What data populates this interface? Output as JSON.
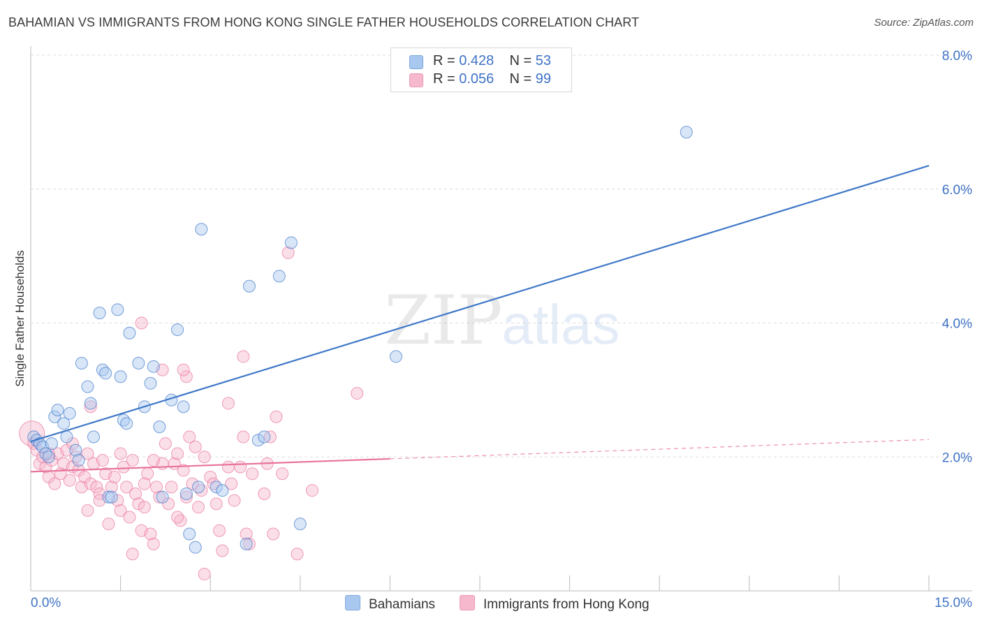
{
  "title": "BAHAMIAN VS IMMIGRANTS FROM HONG KONG SINGLE FATHER HOUSEHOLDS CORRELATION CHART",
  "source": "Source: ZipAtlas.com",
  "watermark": {
    "zip": "ZIP",
    "atlas": "atlas"
  },
  "legend_top": [
    {
      "r_label": "R = ",
      "r_value": "0.428",
      "n_label": "N = ",
      "n_value": "53",
      "color": "#a8c8f0"
    },
    {
      "r_label": "R = ",
      "r_value": "0.056",
      "n_label": "N = ",
      "n_value": "99",
      "color": "#f6b8cc"
    }
  ],
  "legend_bottom": [
    {
      "label": "Bahamians",
      "color": "#a8c8f0"
    },
    {
      "label": "Immigrants from Hong Kong",
      "color": "#f6b8cc"
    }
  ],
  "chart_data": {
    "type": "scatter",
    "ylabel": "Single Father Households",
    "xlabel": "",
    "xlim": [
      0,
      15
    ],
    "ylim": [
      0,
      8
    ],
    "x_ticks_labeled": [
      "0.0%",
      "15.0%"
    ],
    "y_ticks": [
      {
        "value": 2,
        "label": "2.0%"
      },
      {
        "value": 4,
        "label": "4.0%"
      },
      {
        "value": 6,
        "label": "6.0%"
      },
      {
        "value": 8,
        "label": "8.0%"
      }
    ],
    "grid": "horizontal-dashed",
    "legend_position": "top-center",
    "series": [
      {
        "name": "Bahamians",
        "color": "#3f78c8",
        "marker_fill": "#a8c8f0",
        "trend": {
          "x0": 0,
          "y0": 2.23,
          "x1": 15,
          "y1": 6.35,
          "dashed_from": null
        },
        "points": [
          [
            0.05,
            2.3
          ],
          [
            0.1,
            2.25
          ],
          [
            0.15,
            2.2
          ],
          [
            0.2,
            2.15
          ],
          [
            0.25,
            2.05
          ],
          [
            0.3,
            2.0
          ],
          [
            0.35,
            2.2
          ],
          [
            0.4,
            2.6
          ],
          [
            0.45,
            2.7
          ],
          [
            0.55,
            2.5
          ],
          [
            0.6,
            2.3
          ],
          [
            0.65,
            2.65
          ],
          [
            0.75,
            2.1
          ],
          [
            0.8,
            1.95
          ],
          [
            0.85,
            3.4
          ],
          [
            0.95,
            3.05
          ],
          [
            1.0,
            2.8
          ],
          [
            1.05,
            2.3
          ],
          [
            1.15,
            4.15
          ],
          [
            1.2,
            3.3
          ],
          [
            1.25,
            3.25
          ],
          [
            1.3,
            1.4
          ],
          [
            1.35,
            1.4
          ],
          [
            1.45,
            4.2
          ],
          [
            1.5,
            3.2
          ],
          [
            1.55,
            2.55
          ],
          [
            1.65,
            3.85
          ],
          [
            1.8,
            3.4
          ],
          [
            1.9,
            2.75
          ],
          [
            2.0,
            3.1
          ],
          [
            2.05,
            3.35
          ],
          [
            2.15,
            2.45
          ],
          [
            2.2,
            1.4
          ],
          [
            2.35,
            2.85
          ],
          [
            2.45,
            3.9
          ],
          [
            2.55,
            2.75
          ],
          [
            2.65,
            0.85
          ],
          [
            2.75,
            0.65
          ],
          [
            2.6,
            1.45
          ],
          [
            2.8,
            1.55
          ],
          [
            2.85,
            5.4
          ],
          [
            3.1,
            1.55
          ],
          [
            3.2,
            1.5
          ],
          [
            3.6,
            0.7
          ],
          [
            3.65,
            4.55
          ],
          [
            3.8,
            2.25
          ],
          [
            3.9,
            2.3
          ],
          [
            4.15,
            4.7
          ],
          [
            4.35,
            5.2
          ],
          [
            4.5,
            1.0
          ],
          [
            6.1,
            3.5
          ],
          [
            10.95,
            6.85
          ],
          [
            1.6,
            2.5
          ]
        ]
      },
      {
        "name": "Immigrants from Hong Kong",
        "color": "#e8739c",
        "marker_fill": "#f6b8cc",
        "trend": {
          "x0": 0,
          "y0": 1.78,
          "x1": 15,
          "y1": 2.26,
          "dashed_from": 6.0
        },
        "points": [
          [
            0.02,
            2.35
          ],
          [
            0.05,
            2.2
          ],
          [
            0.1,
            2.1
          ],
          [
            0.15,
            1.9
          ],
          [
            0.2,
            2.0
          ],
          [
            0.25,
            1.85
          ],
          [
            0.3,
            1.7
          ],
          [
            0.35,
            1.95
          ],
          [
            0.4,
            1.6
          ],
          [
            0.45,
            2.05
          ],
          [
            0.5,
            1.75
          ],
          [
            0.55,
            1.9
          ],
          [
            0.6,
            2.1
          ],
          [
            0.65,
            1.65
          ],
          [
            0.7,
            1.85
          ],
          [
            0.75,
            2.0
          ],
          [
            0.8,
            1.8
          ],
          [
            0.85,
            1.55
          ],
          [
            0.9,
            1.7
          ],
          [
            0.95,
            2.05
          ],
          [
            1.0,
            1.6
          ],
          [
            1.05,
            1.9
          ],
          [
            1.1,
            1.55
          ],
          [
            1.15,
            1.45
          ],
          [
            1.2,
            1.95
          ],
          [
            1.25,
            1.75
          ],
          [
            1.3,
            1.0
          ],
          [
            1.35,
            1.55
          ],
          [
            1.4,
            1.7
          ],
          [
            1.45,
            1.35
          ],
          [
            1.5,
            1.2
          ],
          [
            1.55,
            1.85
          ],
          [
            1.6,
            1.55
          ],
          [
            1.65,
            1.1
          ],
          [
            1.7,
            0.55
          ],
          [
            1.75,
            1.45
          ],
          [
            1.8,
            1.3
          ],
          [
            1.85,
            0.9
          ],
          [
            1.9,
            1.25
          ],
          [
            1.95,
            1.75
          ],
          [
            2.0,
            0.85
          ],
          [
            2.05,
            0.7
          ],
          [
            2.1,
            1.55
          ],
          [
            2.15,
            1.4
          ],
          [
            2.2,
            1.9
          ],
          [
            2.25,
            2.2
          ],
          [
            2.3,
            1.3
          ],
          [
            2.35,
            1.55
          ],
          [
            2.4,
            1.9
          ],
          [
            2.45,
            2.05
          ],
          [
            2.5,
            1.05
          ],
          [
            2.55,
            1.8
          ],
          [
            2.6,
            1.4
          ],
          [
            2.65,
            2.3
          ],
          [
            2.7,
            1.6
          ],
          [
            2.8,
            1.25
          ],
          [
            2.85,
            1.5
          ],
          [
            2.9,
            2.0
          ],
          [
            3.0,
            1.7
          ],
          [
            3.05,
            1.6
          ],
          [
            3.1,
            1.3
          ],
          [
            3.15,
            0.9
          ],
          [
            3.2,
            0.6
          ],
          [
            3.3,
            2.8
          ],
          [
            3.35,
            1.6
          ],
          [
            3.4,
            1.35
          ],
          [
            3.5,
            1.85
          ],
          [
            3.55,
            2.3
          ],
          [
            3.6,
            0.85
          ],
          [
            3.65,
            0.7
          ],
          [
            3.7,
            1.75
          ],
          [
            3.9,
            1.45
          ],
          [
            3.95,
            1.9
          ],
          [
            4.0,
            2.3
          ],
          [
            4.05,
            0.85
          ],
          [
            4.1,
            2.6
          ],
          [
            4.2,
            1.75
          ],
          [
            4.3,
            5.05
          ],
          [
            4.45,
            0.55
          ],
          [
            4.7,
            1.5
          ],
          [
            5.45,
            2.95
          ],
          [
            2.6,
            3.2
          ],
          [
            2.55,
            3.3
          ],
          [
            2.2,
            3.3
          ],
          [
            1.85,
            4.0
          ],
          [
            1.0,
            2.75
          ],
          [
            0.95,
            1.2
          ],
          [
            3.55,
            3.5
          ],
          [
            2.9,
            0.25
          ],
          [
            1.5,
            2.05
          ],
          [
            0.7,
            2.2
          ],
          [
            1.9,
            1.6
          ],
          [
            2.75,
            2.15
          ],
          [
            3.3,
            1.85
          ],
          [
            2.45,
            1.1
          ],
          [
            1.15,
            1.35
          ],
          [
            0.3,
            2.05
          ],
          [
            1.7,
            1.95
          ],
          [
            2.05,
            1.95
          ]
        ]
      }
    ]
  }
}
